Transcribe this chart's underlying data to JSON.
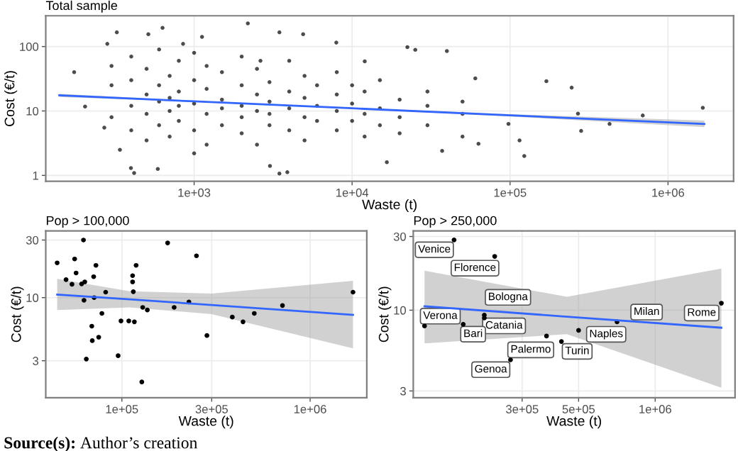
{
  "chart_data": [
    {
      "type": "scatter",
      "title": "Total sample",
      "xlabel": "Waste (t)",
      "ylabel": "Cost (€/t)",
      "log": "xy",
      "grid": true,
      "xlim": [
        115,
        2600000
      ],
      "ylim": [
        0.81,
        300
      ],
      "xticks": [
        {
          "value": 1000,
          "label": "1e+03"
        },
        {
          "value": 10000,
          "label": "1e+04"
        },
        {
          "value": 100000,
          "label": "1e+05"
        },
        {
          "value": 1000000,
          "label": "1e+06"
        }
      ],
      "yticks": [
        1,
        10,
        100
      ],
      "series": [
        {
          "marker": "circle",
          "color": "#000000",
          "x": [
            174,
            204,
            270,
            324,
            282,
            339,
            398,
            417,
            513,
            631,
            589,
            851,
            1122,
            2188,
            2630,
            3467,
            4898,
            3467,
            3890,
            3020,
            7943,
            12023,
            22387,
            25119,
            39810,
            37154,
            16596,
            60256,
            63096,
            114815,
            123027,
            169824,
            245470,
            281838,
            269153,
            426580,
            691831,
            1660000,
            97700,
            300,
            300,
            300,
            400,
            400,
            400,
            400,
            500,
            500,
            500,
            500,
            600,
            600,
            600,
            600,
            700,
            700,
            700,
            700,
            800,
            800,
            800,
            800,
            1000,
            1000,
            1000,
            1000,
            1000,
            1200,
            1200,
            1200,
            1200,
            1500,
            1500,
            1500,
            1500,
            2000,
            2000,
            2000,
            2000,
            2000,
            2500,
            2500,
            2500,
            2500,
            3000,
            3000,
            3000,
            3000,
            4000,
            4000,
            4000,
            4000,
            5000,
            5000,
            5000,
            5000,
            6000,
            6000,
            6000,
            8000,
            8000,
            8000,
            8000,
            10000,
            10000,
            10000,
            12000,
            12000,
            12000,
            15000,
            15000,
            15000,
            20000,
            20000,
            20000,
            30000,
            30000,
            30000,
            50000,
            50000,
            50000
          ],
          "values": [
            40,
            11.7,
            5.5,
            166,
            110,
            2.5,
            1.3,
            1.09,
            155,
            195,
            1.26,
            110,
            141,
            229,
            60,
            166,
            155,
            1.07,
            1.12,
            1.4,
            115,
            59,
            98,
            89,
            85,
            2.4,
            1.6,
            32,
            3.1,
            3.5,
            2.0,
            29,
            23,
            4.9,
            9.1,
            6.3,
            8.5,
            11.2,
            6.3,
            25,
            8,
            50,
            12,
            30,
            5,
            70,
            18,
            9,
            3.5,
            45,
            14,
            25,
            6,
            90,
            10,
            35,
            4,
            16,
            20,
            7,
            60,
            12,
            13,
            30,
            5,
            80,
            2.2,
            9,
            22,
            50,
            3,
            15,
            6,
            40,
            11,
            12,
            25,
            4.5,
            70,
            8,
            18,
            10,
            3,
            45,
            9,
            28,
            6,
            14,
            11,
            20,
            5,
            60,
            8,
            16,
            35,
            3.5,
            12,
            25,
            7,
            10,
            18,
            5,
            40,
            13,
            7,
            25,
            9,
            20,
            4,
            11,
            6,
            30,
            8,
            15,
            4.5,
            12,
            6,
            20,
            9,
            14,
            4
          ]
        },
        {
          "type": "line",
          "color": "#3366ff",
          "x": [
            140,
            1000,
            10000,
            100000,
            1700000
          ],
          "values": [
            17.5,
            14.1,
            11.0,
            8.55,
            6.3
          ],
          "lower": [
            16.5,
            13.8,
            10.8,
            8.2,
            5.6
          ],
          "upper": [
            18.5,
            14.4,
            11.2,
            8.9,
            7.1
          ]
        }
      ]
    },
    {
      "type": "scatter",
      "title": "Pop > 100,000",
      "xlabel": "Waste (t)",
      "ylabel": "Cost (€/t)",
      "log": "xy",
      "grid": true,
      "xlim": [
        39400,
        2000000
      ],
      "ylim": [
        1.48,
        35.7
      ],
      "xticks": [
        {
          "value": 100000,
          "label": "1e+05"
        },
        {
          "value": 300000,
          "label": "3e+05"
        },
        {
          "value": 1000000,
          "label": "1e+06"
        }
      ],
      "yticks": [
        3,
        10,
        30
      ],
      "annotations": [
        "Source(s): Author’s creation"
      ],
      "series": [
        {
          "marker": "circle",
          "color": "#000000",
          "x": [
            45300,
            50500,
            54300,
            56100,
            57100,
            61100,
            62500,
            62900,
            63500,
            64700,
            69200,
            69600,
            70800,
            71200,
            72800,
            75300,
            78300,
            82000,
            95500,
            98900,
            108800,
            114000,
            114000,
            115000,
            116500,
            119000,
            127600,
            129000,
            136500,
            175000,
            189500,
            227000,
            249000,
            283000,
            386000,
            440000,
            505000,
            713000,
            1690000
          ],
          "values": [
            19.4,
            14.1,
            12.9,
            20.9,
            16.0,
            13.0,
            30,
            9.5,
            13.5,
            3.1,
            5.8,
            4.4,
            14.9,
            10,
            18.5,
            4.7,
            7.4,
            11.1,
            3.3,
            6.4,
            6.4,
            15.2,
            13.5,
            11.2,
            6.3,
            18.5,
            2.0,
            8.3,
            7.9,
            28.4,
            8.3,
            9.2,
            22.2,
            4.85,
            6.9,
            6.3,
            7.4,
            8.6,
            11.1
          ]
        },
        {
          "type": "line",
          "color": "#3366ff",
          "x": [
            45300,
            110000,
            300000,
            1690000
          ],
          "values": [
            10.6,
            9.67,
            8.69,
            7.2
          ],
          "lower": [
            7.9,
            8.3,
            7.3,
            3.8
          ],
          "upper": [
            14.3,
            11.3,
            10.8,
            13.8
          ]
        }
      ]
    },
    {
      "type": "scatter",
      "title": "Pop > 250,000",
      "xlabel": "Waste (t)",
      "ylabel": "Cost (€/t)",
      "log": "xy",
      "grid": true,
      "xlim": [
        112000,
        2060000
      ],
      "ylim": [
        2.71,
        32.6
      ],
      "xticks": [
        {
          "value": 300000,
          "label": "3e+05"
        },
        {
          "value": 500000,
          "label": "5e+05"
        },
        {
          "value": 1000000,
          "label": "1e+06"
        }
      ],
      "yticks": [
        3,
        10,
        30
      ],
      "annotations": [
        {
          "text": "Venice",
          "x": 162000,
          "y": 28.5
        },
        {
          "text": "Florence",
          "x": 234000,
          "y": 22.3
        },
        {
          "text": "Bologna",
          "x": 213000,
          "y": 9.3
        },
        {
          "text": "Catania",
          "x": 213000,
          "y": 8.9
        },
        {
          "text": "Verona",
          "x": 124000,
          "y": 7.9
        },
        {
          "text": "Bari",
          "x": 176000,
          "y": 8.1
        },
        {
          "text": "Genoa",
          "x": 270000,
          "y": 4.77
        },
        {
          "text": "Palermo",
          "x": 374000,
          "y": 6.8
        },
        {
          "text": "Turin",
          "x": 428000,
          "y": 6.27
        },
        {
          "text": "Naples",
          "x": 500000,
          "y": 7.4
        },
        {
          "text": "Milan",
          "x": 708000,
          "y": 8.4
        },
        {
          "text": "Rome",
          "x": 1820000,
          "y": 11.1
        }
      ],
      "series": [
        {
          "marker": "circle",
          "color": "#000000",
          "x": [
            162000,
            234000,
            213000,
            213000,
            124000,
            176000,
            270000,
            374000,
            428000,
            500000,
            708000,
            1820000
          ],
          "values": [
            28.5,
            22.3,
            9.3,
            8.9,
            7.9,
            8.1,
            4.77,
            6.8,
            6.27,
            7.4,
            8.4,
            11.1
          ]
        },
        {
          "type": "line",
          "color": "#3366ff",
          "x": [
            124000,
            450000,
            1820000
          ],
          "values": [
            10.6,
            9.08,
            7.7
          ],
          "lower": [
            6.1,
            7.0,
            3.15
          ],
          "upper": [
            18,
            12.2,
            18.6
          ]
        }
      ]
    }
  ]
}
